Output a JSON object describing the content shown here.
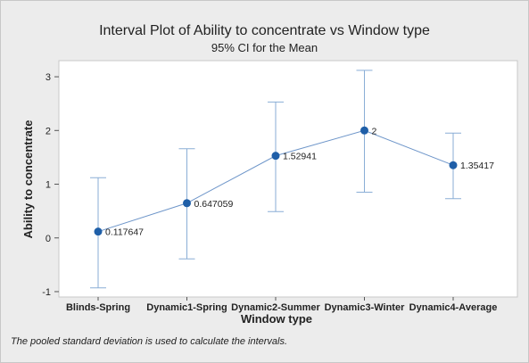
{
  "chart_data": {
    "type": "interval",
    "title": "Interval Plot of Ability to concentrate vs Window type",
    "subtitle": "95% CI for the Mean",
    "xlabel": "Window type",
    "ylabel": "Ability to concentrate",
    "ylim": [
      -1.1,
      3.3
    ],
    "yticks": [
      -1,
      0,
      1,
      2,
      3
    ],
    "categories": [
      "Blinds-Spring",
      "Dynamic1-Spring",
      "Dynamic2-Summer",
      "Dynamic3-Winter",
      "Dynamic4-Average"
    ],
    "means": [
      0.117647,
      0.647059,
      1.52941,
      2,
      1.35417
    ],
    "mean_labels": [
      "0.117647",
      "0.647059",
      "1.52941",
      "2",
      "1.35417"
    ],
    "ci_lower": [
      -0.93,
      -0.39,
      0.49,
      0.85,
      0.73
    ],
    "ci_upper": [
      1.12,
      1.66,
      2.53,
      3.12,
      1.95
    ],
    "footnote": "The pooled standard deviation is used to calculate the intervals.",
    "colors": {
      "point": "#1f5fa8",
      "interval": "#8aaed6",
      "line": "#6d95c9",
      "plot_bg": "#ffffff",
      "frame_bg": "#ececec"
    }
  }
}
